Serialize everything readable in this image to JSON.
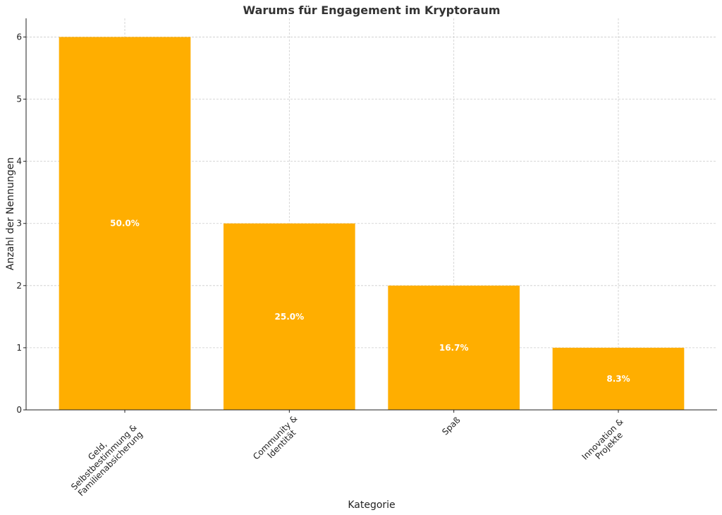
{
  "chart_data": {
    "type": "bar",
    "title": "Warums für Engagement im Kryptoraum",
    "xlabel": "Kategorie",
    "ylabel": "Anzahl der Nennungen",
    "categories": [
      [
        "Geld,",
        "Selbstbestimmung &",
        "Familienabsicherung"
      ],
      [
        "Community &",
        "Identität"
      ],
      [
        "Spaß"
      ],
      [
        "Innovation &",
        "Projekte"
      ]
    ],
    "values": [
      6,
      3,
      2,
      1
    ],
    "data_labels": [
      "50.0%",
      "25.0%",
      "16.7%",
      "8.3%"
    ],
    "ylim": [
      0,
      6.3
    ],
    "yticks": [
      0,
      1,
      2,
      3,
      4,
      5,
      6
    ],
    "grid": true,
    "bar_color": "#FFAE00"
  }
}
